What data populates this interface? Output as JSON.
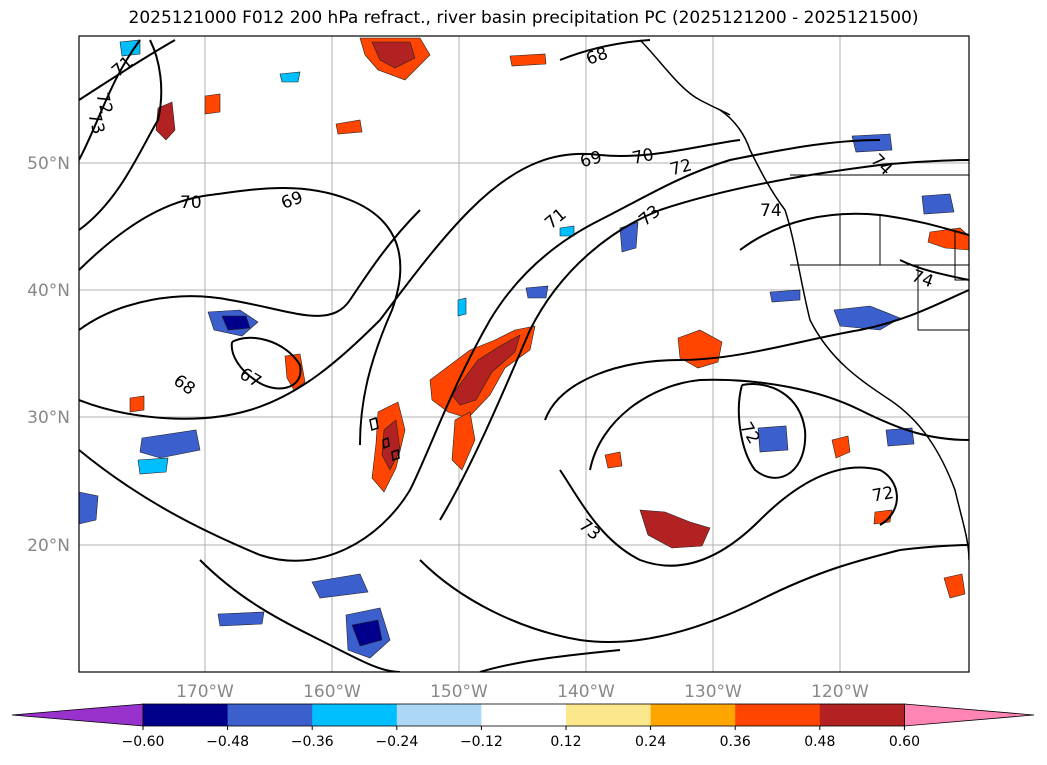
{
  "title": "2025121000 F012 200 hPa refract., river basin precipitation PC (2025121200 - 2025121500)",
  "map": {
    "latitude_labels": [
      "50°N",
      "40°N",
      "30°N",
      "20°N"
    ],
    "longitude_labels": [
      "170°W",
      "160°W",
      "150°W",
      "140°W",
      "130°W",
      "120°W"
    ],
    "contour_labels": [
      "71",
      "72",
      "73",
      "70",
      "69",
      "68",
      "67",
      "68",
      "69",
      "70",
      "72",
      "71",
      "73",
      "74",
      "74",
      "74",
      "72",
      "72",
      "73"
    ]
  },
  "colorbar": {
    "tick_labels": [
      "−0.60",
      "−0.48",
      "−0.36",
      "−0.24",
      "−0.12",
      "0.12",
      "0.24",
      "0.36",
      "0.48",
      "0.60"
    ],
    "colors": [
      "#9932cc",
      "#00008b",
      "#3b5fcd",
      "#00bfff",
      "#add8f5",
      "#ffffff",
      "#fce88c",
      "#ffa500",
      "#ff4500",
      "#b22222",
      "#ff85b5"
    ]
  }
}
